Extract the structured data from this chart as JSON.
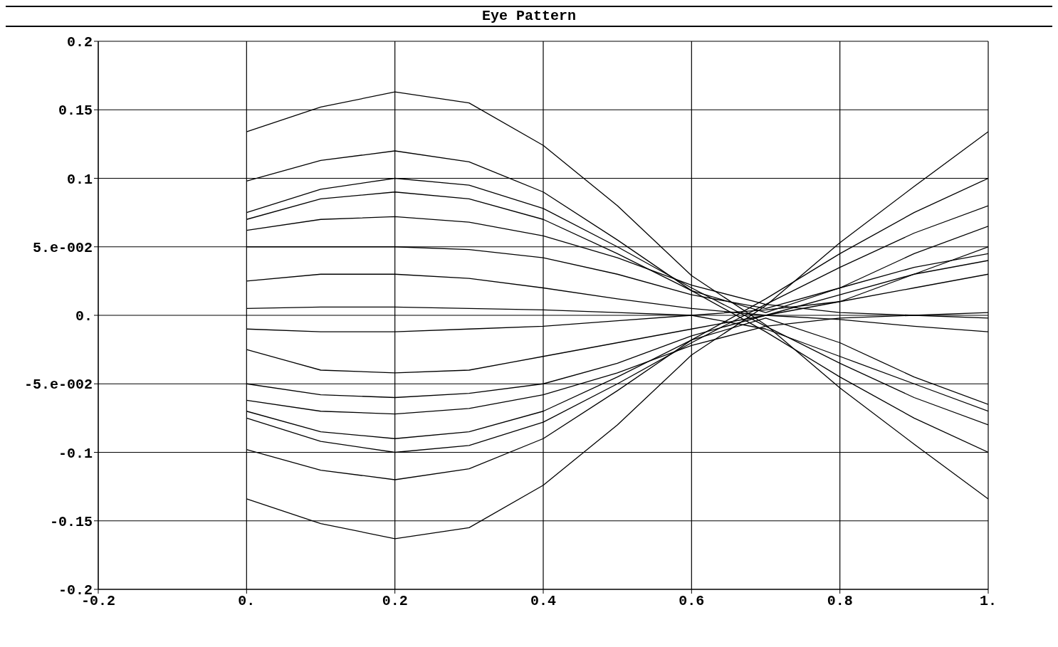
{
  "chart_data": {
    "type": "line",
    "title": "Eye Pattern",
    "x": [
      0,
      0.1,
      0.2,
      0.3,
      0.4,
      0.5,
      0.6,
      0.7,
      0.8,
      0.9,
      1
    ],
    "series": [
      {
        "color": "#000000",
        "values": [
          0.134,
          0.152,
          0.163,
          0.155,
          0.124,
          0.08,
          0.029,
          -0.007,
          -0.053,
          -0.094,
          -0.134
        ]
      },
      {
        "color": "#000000",
        "values": [
          -0.134,
          -0.152,
          -0.163,
          -0.155,
          -0.124,
          -0.08,
          -0.029,
          0.007,
          0.053,
          0.094,
          0.134
        ]
      },
      {
        "color": "#000000",
        "values": [
          0.098,
          0.113,
          0.12,
          0.112,
          0.09,
          0.055,
          0.018,
          -0.012,
          -0.045,
          -0.075,
          -0.1
        ]
      },
      {
        "color": "#000000",
        "values": [
          -0.098,
          -0.113,
          -0.12,
          -0.112,
          -0.09,
          -0.055,
          -0.018,
          0.012,
          0.045,
          0.075,
          0.1
        ]
      },
      {
        "color": "#000000",
        "values": [
          0.075,
          0.092,
          0.1,
          0.095,
          0.078,
          0.05,
          0.02,
          -0.008,
          -0.035,
          -0.06,
          -0.08
        ]
      },
      {
        "color": "#000000",
        "values": [
          -0.075,
          -0.092,
          -0.1,
          -0.095,
          -0.078,
          -0.05,
          -0.02,
          0.008,
          0.035,
          0.06,
          0.08
        ]
      },
      {
        "color": "#000000",
        "values": [
          0.07,
          0.085,
          0.09,
          0.085,
          0.07,
          0.045,
          0.018,
          0.002,
          0.02,
          0.045,
          0.065
        ]
      },
      {
        "color": "#000000",
        "values": [
          -0.07,
          -0.085,
          -0.09,
          -0.085,
          -0.07,
          -0.045,
          -0.018,
          -0.002,
          -0.02,
          -0.045,
          -0.065
        ]
      },
      {
        "color": "#000000",
        "values": [
          0.062,
          0.07,
          0.072,
          0.068,
          0.058,
          0.042,
          0.022,
          0.008,
          0.002,
          0,
          -0.002
        ]
      },
      {
        "color": "#000000",
        "values": [
          -0.062,
          -0.07,
          -0.072,
          -0.068,
          -0.058,
          -0.042,
          -0.022,
          -0.008,
          -0.002,
          0,
          0.002
        ]
      },
      {
        "color": "#000000",
        "values": [
          0.05,
          0.05,
          0.05,
          0.048,
          0.042,
          0.03,
          0.015,
          0.005,
          0.02,
          0.035,
          0.045
        ]
      },
      {
        "color": "#000000",
        "values": [
          -0.05,
          -0.058,
          -0.06,
          -0.057,
          -0.05,
          -0.035,
          -0.015,
          0,
          0.015,
          0.03,
          0.04
        ]
      },
      {
        "color": "#000000",
        "values": [
          0.025,
          0.03,
          0.03,
          0.027,
          0.02,
          0.012,
          0.005,
          0,
          -0.003,
          -0.008,
          -0.012
        ]
      },
      {
        "color": "#000000",
        "values": [
          -0.01,
          -0.012,
          -0.012,
          -0.01,
          -0.008,
          -0.004,
          0,
          0.004,
          0.01,
          0.03,
          0.05
        ]
      },
      {
        "color": "#000000",
        "values": [
          0.005,
          0.006,
          0.006,
          0.005,
          0.004,
          0.002,
          0,
          -0.01,
          -0.03,
          -0.05,
          -0.07
        ]
      },
      {
        "color": "#000000",
        "values": [
          -0.025,
          -0.04,
          -0.042,
          -0.04,
          -0.03,
          -0.02,
          -0.01,
          0,
          0.01,
          0.02,
          0.03
        ]
      }
    ],
    "xlim": [
      -0.2,
      1
    ],
    "ylim": [
      -0.2,
      0.2
    ],
    "xticks": [
      {
        "value": -0.2,
        "label": "-0.2"
      },
      {
        "value": 0,
        "label": "0."
      },
      {
        "value": 0.2,
        "label": "0.2"
      },
      {
        "value": 0.4,
        "label": "0.4"
      },
      {
        "value": 0.6,
        "label": "0.6"
      },
      {
        "value": 0.8,
        "label": "0.8"
      },
      {
        "value": 1,
        "label": "1."
      }
    ],
    "yticks": [
      {
        "value": -0.2,
        "label": "-0.2"
      },
      {
        "value": -0.15,
        "label": "-0.15"
      },
      {
        "value": -0.1,
        "label": "-0.1"
      },
      {
        "value": -0.05,
        "label": "-5.e-002"
      },
      {
        "value": 0,
        "label": "0."
      },
      {
        "value": 0.05,
        "label": "5.e-002"
      },
      {
        "value": 0.1,
        "label": "0.1"
      },
      {
        "value": 0.15,
        "label": "0.15"
      },
      {
        "value": 0.2,
        "label": "0.2"
      }
    ],
    "grid": true,
    "line_style": "solid"
  }
}
